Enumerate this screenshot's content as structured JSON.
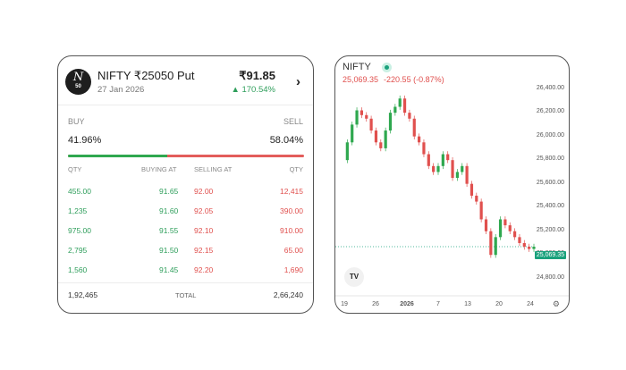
{
  "option_card": {
    "logo_text": "N",
    "logo_sub": "50",
    "title": "NIFTY ₹25050 Put",
    "expiry": "27 Jan 2026",
    "price": "₹91.85",
    "change": "▲ 170.54%",
    "buy_label": "BUY",
    "sell_label": "SELL",
    "buy_pct": "41.96%",
    "sell_pct": "58.04%",
    "buy_fraction": 0.4196,
    "headers": [
      "QTY",
      "BUYING AT",
      "SELLING AT",
      "QTY"
    ],
    "rows": [
      {
        "bid_qty": "455.00",
        "bid": "91.65",
        "ask": "92.00",
        "ask_qty": "12,415"
      },
      {
        "bid_qty": "1,235",
        "bid": "91.60",
        "ask": "92.05",
        "ask_qty": "390.00"
      },
      {
        "bid_qty": "975.00",
        "bid": "91.55",
        "ask": "92.10",
        "ask_qty": "910.00"
      },
      {
        "bid_qty": "2,795",
        "bid": "91.50",
        "ask": "92.15",
        "ask_qty": "65.00"
      },
      {
        "bid_qty": "1,560",
        "bid": "91.45",
        "ask": "92.20",
        "ask_qty": "1,690"
      }
    ],
    "total_bid": "1,92,465",
    "total_label": "TOTAL",
    "total_ask": "2,66,240"
  },
  "chart_panel": {
    "symbol": "NIFTY",
    "last": "25,069.35",
    "change": "-220.55 (-0.87%)",
    "current_tag": "25,069.35",
    "logo": "TV",
    "gear_icon": "⚙"
  },
  "chart_data": {
    "type": "line",
    "ylim": [
      24700,
      26450
    ],
    "y_ticks": [
      "26,400.00",
      "26,200.00",
      "26,000.00",
      "25,800.00",
      "25,600.00",
      "25,400.00",
      "25,200.00",
      "25,000.00",
      "24,800.00"
    ],
    "x_ticks": [
      "19",
      "26",
      "2026",
      "7",
      "13",
      "20",
      "24"
    ],
    "up_color": "#2fa84f",
    "down_color": "#e0504e",
    "x": [
      0,
      1,
      2,
      3,
      4,
      5,
      6,
      7,
      8,
      9,
      10,
      11,
      12,
      13,
      14,
      15,
      16,
      17,
      18,
      19,
      20,
      21,
      22,
      23,
      24,
      25,
      26,
      27,
      28,
      29,
      30,
      31,
      32,
      33,
      34,
      35,
      36,
      37,
      38,
      39,
      40
    ],
    "values": [
      25800,
      25950,
      26100,
      26220,
      26180,
      26150,
      26050,
      25950,
      25900,
      26050,
      26200,
      26250,
      26320,
      26200,
      26150,
      26000,
      25950,
      25850,
      25750,
      25700,
      25750,
      25850,
      25800,
      25650,
      25700,
      25750,
      25600,
      25500,
      25450,
      25300,
      25200,
      25000,
      25150,
      25300,
      25250,
      25200,
      25150,
      25100,
      25069.35,
      25050,
      25069.35
    ]
  }
}
